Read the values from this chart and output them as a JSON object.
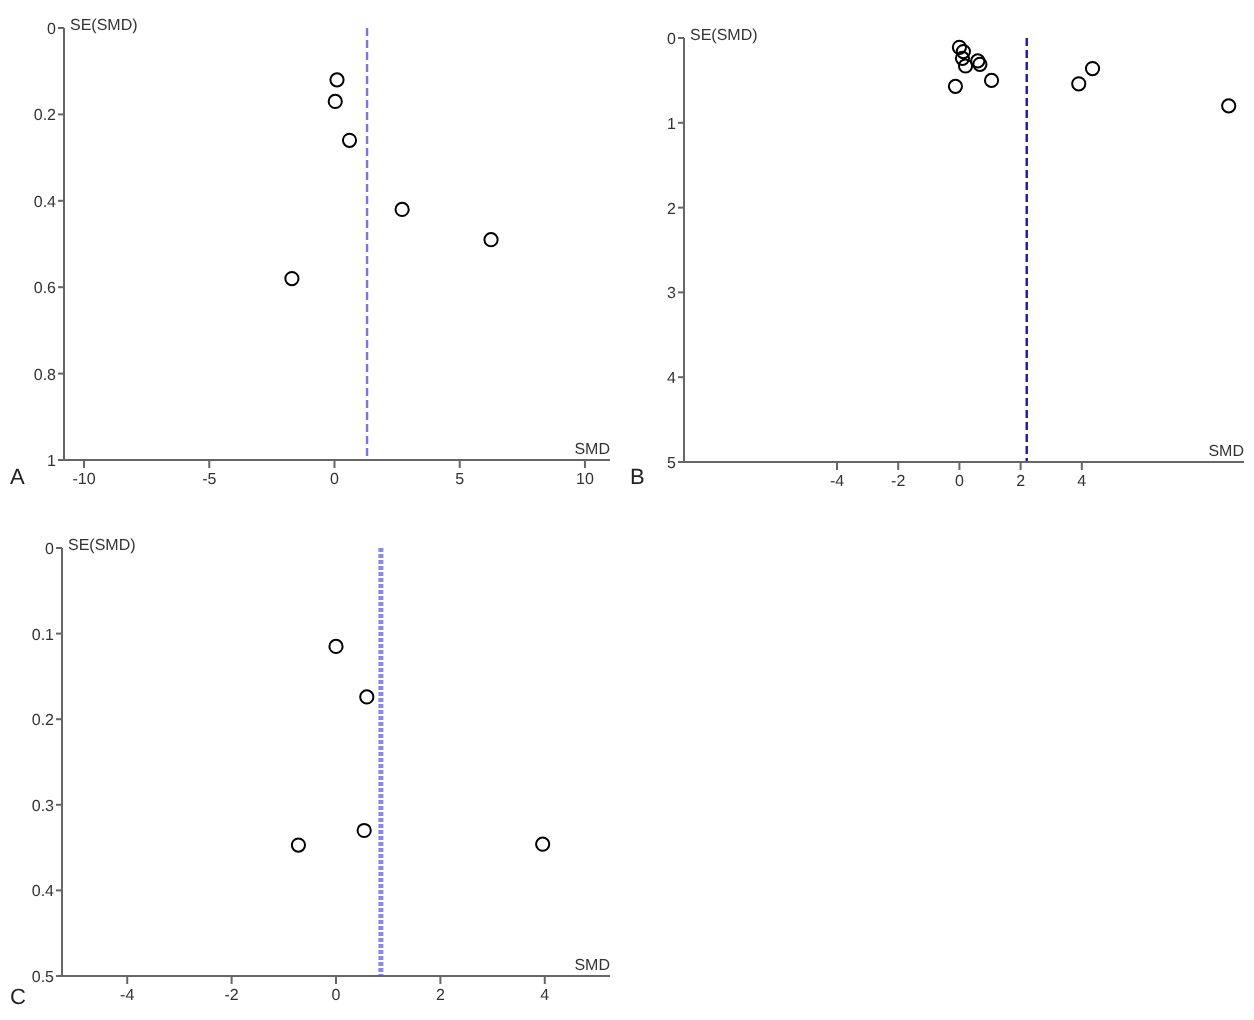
{
  "chart_data": [
    {
      "type": "scatter",
      "xlabel": "SMD",
      "ylabel": "SE(SMD)",
      "annotations": [
        "A"
      ],
      "marker": "circle",
      "grid": false,
      "color": "#000000",
      "x": [
        0.1,
        0.03,
        0.6,
        2.7,
        6.25,
        -1.7
      ],
      "values": [
        0.12,
        0.17,
        0.26,
        0.42,
        0.49,
        0.58
      ],
      "xlim": [
        -10.8,
        11
      ],
      "xticks": [
        -10,
        -5,
        0,
        5,
        10
      ],
      "ylim": [
        1,
        0
      ],
      "yticks": [
        0,
        0.2,
        0.4,
        0.6,
        0.8,
        1
      ],
      "ref_lines": [
        {
          "axis": "x",
          "value": 1.3,
          "color": "#7777dd",
          "line_style": "dashed"
        }
      ]
    },
    {
      "type": "scatter",
      "xlabel": "SMD",
      "ylabel": "SE(SMD)",
      "annotations": [
        "B"
      ],
      "marker": "circle",
      "grid": false,
      "color": "#000000",
      "x": [
        0,
        0.13,
        0.1,
        0.2,
        0.6,
        0.67,
        -0.13,
        1.05,
        3.9,
        4.35,
        8.8
      ],
      "values": [
        0.11,
        0.16,
        0.24,
        0.33,
        0.27,
        0.31,
        0.57,
        0.5,
        0.54,
        0.36,
        0.8
      ],
      "xlim": [
        -9,
        9.3
      ],
      "xticks": [
        -4,
        -2,
        0,
        2,
        4
      ],
      "ylim": [
        5,
        0
      ],
      "yticks": [
        0,
        1,
        2,
        3,
        4,
        5
      ],
      "ref_lines": [
        {
          "axis": "x",
          "value": 2.2,
          "color": "#1a1aa0",
          "line_style": "dashed"
        }
      ]
    },
    {
      "type": "scatter",
      "xlabel": "SMD",
      "ylabel": "SE(SMD)",
      "annotations": [
        "C"
      ],
      "marker": "circle",
      "grid": false,
      "color": "#000000",
      "x": [
        0,
        0.59,
        0.54,
        -0.72,
        3.96
      ],
      "values": [
        0.115,
        0.174,
        0.33,
        0.347,
        0.346
      ],
      "xlim": [
        -5.25,
        5.25
      ],
      "xticks": [
        -4,
        -2,
        0,
        2,
        4
      ],
      "ylim": [
        0.5,
        0
      ],
      "yticks": [
        0,
        0.1,
        0.2,
        0.3,
        0.4,
        0.5
      ],
      "ref_lines": [
        {
          "axis": "x",
          "value": 0.86,
          "color": "#8888ee",
          "line_style": "dotted"
        }
      ]
    }
  ]
}
